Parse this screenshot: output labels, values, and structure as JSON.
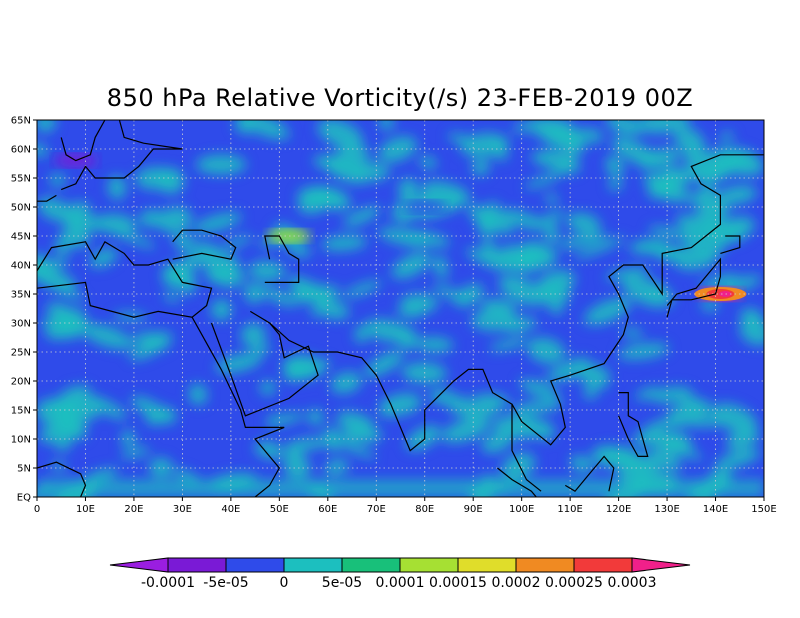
{
  "title": "850 hPa Relative Vorticity(/s) 23-FEB-2019 00Z",
  "map": {
    "lon_range": [
      0,
      150
    ],
    "lat_range": [
      0,
      65
    ],
    "x_ticks": [
      "0",
      "10E",
      "20E",
      "30E",
      "40E",
      "50E",
      "60E",
      "70E",
      "80E",
      "90E",
      "100E",
      "110E",
      "120E",
      "130E",
      "140E",
      "150E"
    ],
    "y_ticks": [
      "EQ",
      "5N",
      "10N",
      "15N",
      "20N",
      "25N",
      "30N",
      "35N",
      "40N",
      "45N",
      "50N",
      "55N",
      "60N",
      "65N"
    ],
    "gridlines": "dotted",
    "background_level_color": "#2f4bea",
    "coastline_color": "#000000"
  },
  "colorbar": {
    "labels": [
      "-0.0001",
      "-5e-05",
      "0",
      "5e-05",
      "0.0001",
      "0.00015",
      "0.0002",
      "0.00025",
      "0.0003"
    ],
    "colors": [
      "#9a1ee0",
      "#7a1ad6",
      "#2f4bea",
      "#1cbfbf",
      "#18c07a",
      "#a6e033",
      "#e0dd2a",
      "#f08a22",
      "#f23a3a",
      "#f0208a"
    ]
  },
  "features": [
    {
      "name": "Japan high-vorticity core",
      "lon": 141,
      "lat": 35,
      "level": "0.0003"
    },
    {
      "name": "Caspian positive band",
      "lon": 52,
      "lat": 45,
      "level": "0.0001"
    },
    {
      "name": "Scandinavia negative",
      "lon": 8,
      "lat": 58,
      "level": "-0.0001"
    },
    {
      "name": "Central Asia negative band",
      "lon": 80,
      "lat": 50,
      "level": "-5e-05"
    }
  ]
}
